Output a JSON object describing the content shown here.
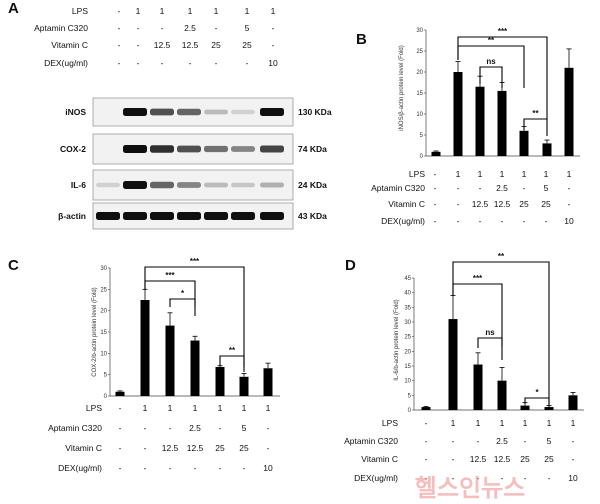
{
  "rows": [
    {
      "label": "LPS",
      "values": [
        "-",
        "1",
        "1",
        "1",
        "1",
        "1",
        "1"
      ]
    },
    {
      "label": "Aptamin C320",
      "values": [
        "-",
        "-",
        "-",
        "2.5",
        "-",
        "5",
        "-"
      ]
    },
    {
      "label": "Vitamin C",
      "values": [
        "-",
        "-",
        "12.5",
        "12.5",
        "25",
        "25",
        "-"
      ]
    },
    {
      "label": "DEX(ug/ml)",
      "values": [
        "-",
        "-",
        "-",
        "-",
        "-",
        "-",
        "10"
      ]
    }
  ],
  "panel_a": {
    "letter": "A",
    "blots": [
      {
        "name": "iNOS",
        "size": "130 KDa",
        "intensities": [
          0,
          1.0,
          0.7,
          0.6,
          0.2,
          0.1,
          1.0
        ]
      },
      {
        "name": "COX-2",
        "size": "74 KDa",
        "intensities": [
          0,
          1.0,
          0.85,
          0.7,
          0.55,
          0.45,
          0.75
        ]
      },
      {
        "name": "IL-6",
        "size": "24 KDa",
        "intensities": [
          0.1,
          1.0,
          0.6,
          0.45,
          0.2,
          0.15,
          0.25
        ]
      },
      {
        "name": "β-actin",
        "size": "43 KDa",
        "intensities": [
          1.0,
          1.0,
          1.0,
          1.0,
          1.0,
          1.0,
          1.0
        ]
      }
    ]
  },
  "chart_data": [
    {
      "panel": "B",
      "type": "bar",
      "ylabel": "iNOS/β-actin protein level (Fold)",
      "ylim": [
        0,
        30
      ],
      "yticks": [
        0,
        5,
        10,
        15,
        20,
        25,
        30
      ],
      "values": [
        1,
        20,
        16.5,
        15.5,
        6,
        3,
        21
      ],
      "errors": [
        0.2,
        2.5,
        2.5,
        2,
        1,
        0.8,
        4.5
      ],
      "sig": [
        {
          "from": 1,
          "to": 5,
          "label": "***"
        },
        {
          "from": 1,
          "to": 4,
          "label": "**"
        },
        {
          "from": 2,
          "to": 3,
          "label": "ns"
        },
        {
          "from": 4,
          "to": 5,
          "label": "**"
        }
      ]
    },
    {
      "panel": "C",
      "type": "bar",
      "ylabel": "COX-2/b-actin protein level (Fold)",
      "ylim": [
        0,
        30
      ],
      "yticks": [
        0,
        5,
        10,
        15,
        20,
        25,
        30
      ],
      "values": [
        1,
        22.5,
        16.5,
        13,
        6.8,
        4.5,
        6.5
      ],
      "errors": [
        0.2,
        2.5,
        3,
        1,
        0.3,
        0.8,
        1.2
      ],
      "sig": [
        {
          "from": 1,
          "to": 5,
          "label": "***"
        },
        {
          "from": 1,
          "to": 3,
          "label": "***"
        },
        {
          "from": 2,
          "to": 3,
          "label": "*"
        },
        {
          "from": 4,
          "to": 5,
          "label": "**"
        }
      ]
    },
    {
      "panel": "D",
      "type": "bar",
      "ylabel": "IL-6/b-actin protein level (Fold)",
      "ylim": [
        0,
        45
      ],
      "yticks": [
        0,
        5,
        10,
        15,
        20,
        25,
        30,
        35,
        40,
        45
      ],
      "values": [
        1,
        31,
        15.5,
        10,
        1.5,
        1,
        5
      ],
      "errors": [
        0.2,
        8,
        4,
        4.5,
        1,
        0.5,
        1
      ],
      "sig": [
        {
          "from": 1,
          "to": 5,
          "label": "**"
        },
        {
          "from": 1,
          "to": 3,
          "label": "***"
        },
        {
          "from": 2,
          "to": 3,
          "label": "ns"
        },
        {
          "from": 4,
          "to": 5,
          "label": "*"
        }
      ]
    }
  ],
  "watermark": "헬스인뉴스"
}
